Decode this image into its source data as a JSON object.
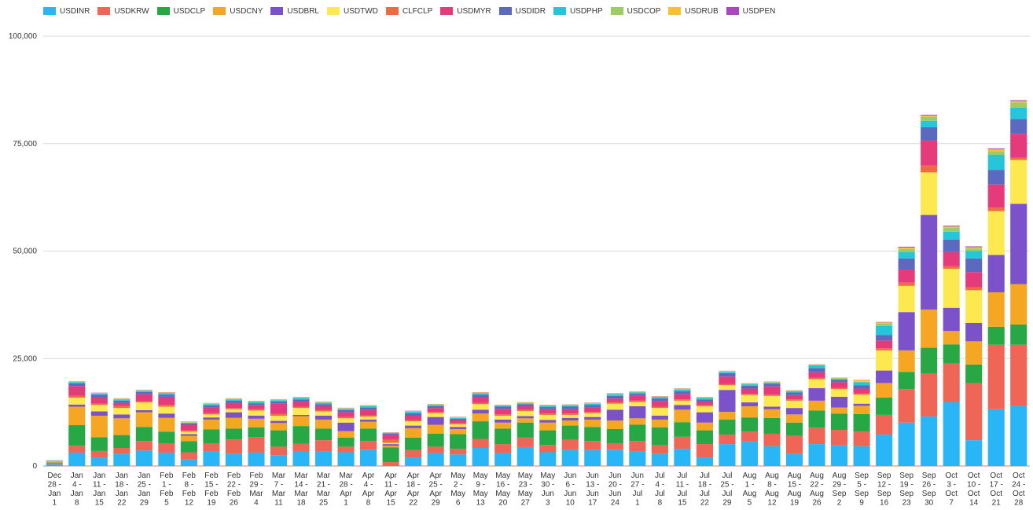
{
  "chart_data": {
    "type": "bar",
    "stacked": true,
    "legend_position": "top-left",
    "grid": true,
    "ylim": [
      0,
      100000
    ],
    "y_ticks": [
      "0",
      "25,000",
      "50,000",
      "75,000",
      "100,000"
    ],
    "x_tick_labels": [
      [
        "Dec",
        "28 -",
        "Jan",
        "1"
      ],
      [
        "Jan",
        "4 -",
        "Jan",
        "8"
      ],
      [
        "Jan",
        "11 -",
        "Jan",
        "15"
      ],
      [
        "Jan",
        "18 -",
        "Jan",
        "22"
      ],
      [
        "Jan",
        "25 -",
        "Jan",
        "29"
      ],
      [
        "Feb",
        "1 -",
        "Feb",
        "5"
      ],
      [
        "Feb",
        "8 -",
        "Feb",
        "12"
      ],
      [
        "Feb",
        "15 -",
        "Feb",
        "19"
      ],
      [
        "Feb",
        "22 -",
        "Feb",
        "26"
      ],
      [
        "Feb",
        "29 -",
        "Mar",
        "4"
      ],
      [
        "Mar",
        "7 -",
        "Mar",
        "11"
      ],
      [
        "Mar",
        "14 -",
        "Mar",
        "18"
      ],
      [
        "Mar",
        "21 -",
        "Mar",
        "25"
      ],
      [
        "Mar",
        "28 -",
        "Apr",
        "1"
      ],
      [
        "Apr",
        "4 -",
        "Apr",
        "8"
      ],
      [
        "Apr",
        "11 -",
        "Apr",
        "15"
      ],
      [
        "Apr",
        "18 -",
        "Apr",
        "22"
      ],
      [
        "Apr",
        "25 -",
        "Apr",
        "29"
      ],
      [
        "May",
        "2 -",
        "May",
        "6"
      ],
      [
        "May",
        "9 -",
        "May",
        "13"
      ],
      [
        "May",
        "16 -",
        "May",
        "20"
      ],
      [
        "May",
        "23 -",
        "May",
        "27"
      ],
      [
        "May",
        "30 -",
        "Jun",
        "3"
      ],
      [
        "Jun",
        "6 -",
        "Jun",
        "10"
      ],
      [
        "Jun",
        "13 -",
        "Jun",
        "17"
      ],
      [
        "Jun",
        "20 -",
        "Jun",
        "24"
      ],
      [
        "Jun",
        "27 -",
        "Jul",
        "1"
      ],
      [
        "Jul",
        "4 -",
        "Jul",
        "8"
      ],
      [
        "Jul",
        "11 -",
        "Jul",
        "15"
      ],
      [
        "Jul",
        "18 -",
        "Jul",
        "22"
      ],
      [
        "Jul",
        "25 -",
        "Jul",
        "29"
      ],
      [
        "Aug",
        "1 -",
        "Aug",
        "5"
      ],
      [
        "Aug",
        "8 -",
        "Aug",
        "12"
      ],
      [
        "Aug",
        "15 -",
        "Aug",
        "19"
      ],
      [
        "Aug",
        "22 -",
        "Aug",
        "26"
      ],
      [
        "Aug",
        "29 -",
        "Sep",
        "2"
      ],
      [
        "Sep",
        "5 -",
        "Sep",
        "9"
      ],
      [
        "Sep",
        "12 -",
        "Sep",
        "16"
      ],
      [
        "Sep",
        "19 -",
        "Sep",
        "23"
      ],
      [
        "Sep",
        "26 -",
        "Sep",
        "30"
      ],
      [
        "Oct",
        "3 -",
        "Oct",
        "7"
      ],
      [
        "Oct",
        "10 -",
        "Oct",
        "14"
      ],
      [
        "Oct",
        "17 -",
        "Oct",
        "21"
      ],
      [
        "Oct",
        "24 -",
        "Oct",
        "28"
      ]
    ],
    "series": [
      {
        "name": "USDINR",
        "color": "#29b6f6",
        "values": [
          400,
          3100,
          2000,
          2800,
          3600,
          3100,
          1500,
          3400,
          2800,
          3100,
          2500,
          3300,
          3400,
          3200,
          3800,
          0,
          2000,
          3000,
          2700,
          4200,
          3000,
          4400,
          3200,
          3700,
          3700,
          3800,
          3400,
          2800,
          4000,
          2000,
          5100,
          5700,
          4600,
          2800,
          5100,
          4800,
          4600,
          7300,
          10100,
          11500,
          14900,
          6000,
          13200,
          14000
        ]
      },
      {
        "name": "USDKRW",
        "color": "#ef6556",
        "values": [
          200,
          1600,
          1500,
          1400,
          2200,
          2200,
          1700,
          1900,
          3400,
          3600,
          2000,
          1900,
          2600,
          1300,
          2000,
          900,
          1700,
          1500,
          1300,
          2100,
          2100,
          2200,
          1700,
          2400,
          2100,
          1500,
          2400,
          2000,
          2800,
          3100,
          2200,
          2300,
          2900,
          4200,
          3800,
          3600,
          3400,
          4600,
          7800,
          10000,
          8900,
          13300,
          15000,
          14200
        ]
      },
      {
        "name": "USDCLP",
        "color": "#28a745",
        "values": [
          200,
          4800,
          3200,
          3000,
          3300,
          2700,
          2600,
          3200,
          2500,
          2300,
          3800,
          4100,
          2700,
          2100,
          2900,
          3400,
          2900,
          3000,
          3400,
          4100,
          3600,
          3500,
          3400,
          3300,
          3300,
          3300,
          3800,
          4200,
          3400,
          3200,
          3500,
          3300,
          3700,
          3100,
          4000,
          3800,
          4100,
          4000,
          4000,
          6000,
          4500,
          4300,
          4200,
          4700
        ]
      },
      {
        "name": "USDCNY",
        "color": "#f5a623",
        "values": [
          100,
          4300,
          5000,
          3900,
          3400,
          3200,
          1200,
          2300,
          2500,
          2000,
          1700,
          2300,
          2100,
          1500,
          1600,
          400,
          2200,
          2100,
          1200,
          1800,
          1400,
          1000,
          1800,
          1200,
          1700,
          2000,
          1500,
          1800,
          2900,
          1800,
          1800,
          2600,
          2000,
          1900,
          2300,
          1400,
          1900,
          3400,
          5000,
          8900,
          3100,
          5400,
          8000,
          9400
        ]
      },
      {
        "name": "USDBRL",
        "color": "#7b52c9",
        "values": [
          50,
          500,
          1000,
          900,
          500,
          1000,
          400,
          500,
          1300,
          700,
          500,
          300,
          900,
          2000,
          500,
          400,
          600,
          1800,
          500,
          900,
          700,
          500,
          600,
          600,
          600,
          2500,
          2800,
          900,
          1100,
          2400,
          5100,
          900,
          600,
          1500,
          2900,
          2500,
          500,
          2900,
          8900,
          22000,
          5400,
          4300,
          8700,
          18700
        ]
      },
      {
        "name": "USDTWD",
        "color": "#fce94f",
        "values": [
          50,
          1600,
          1500,
          1500,
          1800,
          1600,
          600,
          700,
          700,
          1200,
          1200,
          1600,
          1000,
          1000,
          700,
          300,
          1000,
          900,
          600,
          1300,
          900,
          1200,
          1200,
          700,
          900,
          1400,
          1000,
          1800,
          1000,
          1400,
          1100,
          1700,
          2500,
          1700,
          2100,
          1800,
          2100,
          4700,
          6100,
          9900,
          9100,
          7600,
          10200,
          10200
        ]
      },
      {
        "name": "CLFCLP",
        "color": "#f06b3f",
        "values": [
          50,
          400,
          300,
          500,
          300,
          400,
          300,
          300,
          300,
          300,
          400,
          300,
          300,
          300,
          300,
          700,
          300,
          300,
          300,
          300,
          300,
          300,
          300,
          300,
          300,
          400,
          300,
          300,
          300,
          300,
          300,
          300,
          300,
          300,
          300,
          300,
          300,
          500,
          800,
          1600,
          600,
          700,
          800,
          500
        ]
      },
      {
        "name": "USDMYR",
        "color": "#e63b7a",
        "values": [
          50,
          2300,
          1500,
          700,
          1600,
          1900,
          1300,
          1400,
          1200,
          1000,
          2400,
          1200,
          900,
          1100,
          1300,
          1100,
          1000,
          900,
          700,
          1300,
          1300,
          800,
          1000,
          1000,
          1100,
          800,
          1100,
          1300,
          1200,
          800,
          1700,
          1200,
          1900,
          1000,
          1300,
          1300,
          1100,
          1800,
          3000,
          5800,
          3300,
          3500,
          5400,
          5600
        ]
      },
      {
        "name": "USDIDR",
        "color": "#5b6abf",
        "values": [
          50,
          600,
          600,
          500,
          500,
          500,
          300,
          400,
          500,
          400,
          500,
          500,
          500,
          500,
          500,
          300,
          600,
          400,
          300,
          600,
          500,
          500,
          500,
          600,
          500,
          600,
          500,
          600,
          700,
          500,
          800,
          700,
          600,
          600,
          1000,
          500,
          800,
          1300,
          2600,
          3100,
          2900,
          3200,
          3400,
          3400
        ]
      },
      {
        "name": "USDPHP",
        "color": "#26c6da",
        "values": [
          50,
          300,
          200,
          300,
          300,
          300,
          200,
          300,
          300,
          300,
          300,
          300,
          300,
          300,
          300,
          200,
          300,
          300,
          200,
          300,
          200,
          200,
          300,
          300,
          300,
          400,
          300,
          300,
          400,
          300,
          300,
          300,
          300,
          300,
          600,
          300,
          700,
          2100,
          1500,
          1500,
          1800,
          1700,
          3500,
          2700
        ]
      },
      {
        "name": "USDCOP",
        "color": "#9ccc65",
        "values": [
          50,
          100,
          100,
          100,
          100,
          100,
          100,
          100,
          100,
          100,
          100,
          100,
          100,
          100,
          100,
          50,
          100,
          100,
          100,
          100,
          100,
          100,
          100,
          100,
          100,
          100,
          100,
          100,
          100,
          100,
          100,
          100,
          100,
          100,
          100,
          100,
          100,
          500,
          700,
          900,
          900,
          600,
          800,
          1200
        ]
      },
      {
        "name": "USDRUB",
        "color": "#fbc02d",
        "values": [
          50,
          100,
          100,
          100,
          100,
          100,
          100,
          100,
          100,
          100,
          100,
          100,
          100,
          100,
          100,
          50,
          100,
          100,
          100,
          100,
          100,
          100,
          100,
          100,
          100,
          100,
          100,
          100,
          100,
          100,
          100,
          100,
          100,
          100,
          100,
          100,
          400,
          300,
          300,
          300,
          300,
          300,
          500,
          300
        ]
      },
      {
        "name": "USDPEN",
        "color": "#ab47bc",
        "values": [
          50,
          50,
          50,
          50,
          50,
          50,
          50,
          50,
          50,
          50,
          50,
          50,
          50,
          50,
          50,
          50,
          50,
          50,
          50,
          50,
          50,
          50,
          50,
          50,
          50,
          50,
          50,
          50,
          50,
          50,
          50,
          50,
          50,
          50,
          50,
          50,
          50,
          100,
          200,
          200,
          200,
          200,
          200,
          200
        ]
      }
    ]
  }
}
